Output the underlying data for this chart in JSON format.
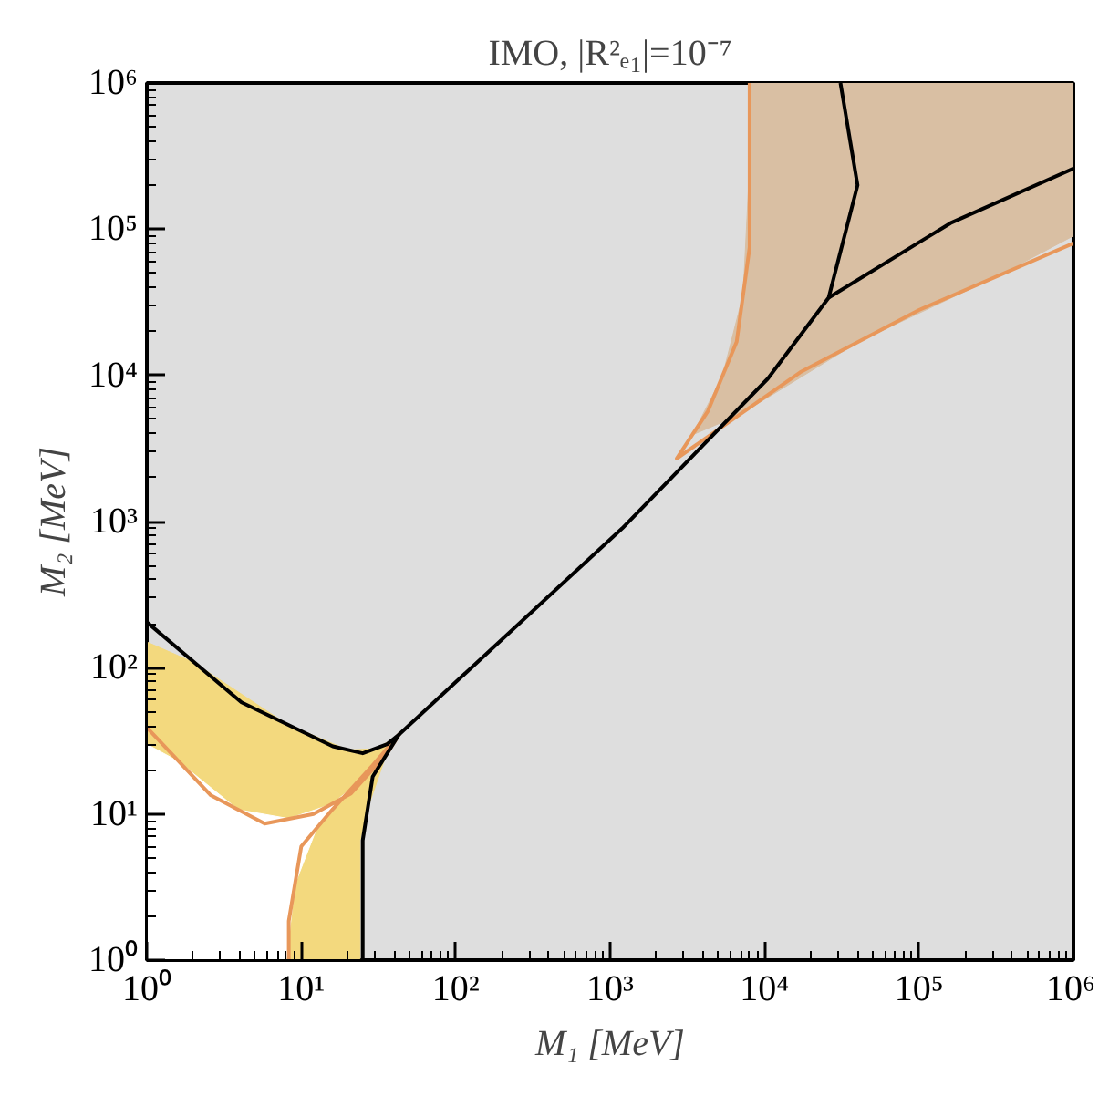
{
  "chart_data": {
    "type": "line",
    "title": "IMO, |R²ₑ₁|=10⁻⁷",
    "xlabel": "M₁ [MeV]",
    "ylabel": "M₂ [MeV]",
    "log": "xy",
    "line_style": "solid",
    "xlim": [
      1,
      1000000
    ],
    "ylim": [
      1,
      1000000
    ],
    "xticks": [
      {
        "value": 1,
        "label": "10⁰"
      },
      {
        "value": 10,
        "label": "10¹"
      },
      {
        "value": 100,
        "label": "10²"
      },
      {
        "value": 1000,
        "label": "10³"
      },
      {
        "value": 10000,
        "label": "10⁴"
      },
      {
        "value": 100000,
        "label": "10⁵"
      },
      {
        "value": 1000000,
        "label": "10⁶"
      }
    ],
    "yticks": [
      {
        "value": 1,
        "label": "10⁰"
      },
      {
        "value": 10,
        "label": "10¹"
      },
      {
        "value": 100,
        "label": "10²"
      },
      {
        "value": 1000,
        "label": "10³"
      },
      {
        "value": 10000,
        "label": "10⁴"
      },
      {
        "value": 100000,
        "label": "10⁵"
      },
      {
        "value": 1000000,
        "label": "10⁶"
      }
    ],
    "series": [
      {
        "type": "area",
        "color": "#f3d97e",
        "x": [
          1,
          1,
          2,
          8.1,
          20,
          30,
          39.3,
          35.3,
          26.9,
          24,
          24
        ],
        "values": [
          1,
          150,
          109,
          41,
          27.4,
          27.9,
          32.4,
          25,
          10.9,
          6.6,
          1
        ]
      },
      {
        "type": "area",
        "color": "#ffffff",
        "x": [
          1,
          1,
          1.6,
          3.9,
          8.3,
          15.9,
          27.5,
          39.3,
          35.3,
          21.5,
          12.6,
          9.1,
          8
        ],
        "values": [
          1,
          30,
          22.9,
          10.7,
          9.3,
          11.7,
          18.9,
          30.2,
          27.4,
          15.2,
          8,
          3.3,
          1
        ]
      },
      {
        "type": "area",
        "color": "#d9bfa3",
        "x": [
          8200,
          8000,
          7270,
          5330,
          3410,
          6770,
          41200,
          316000,
          1000000,
          1000000
        ],
        "values": [
          1000000,
          274000,
          35700,
          9840,
          3920,
          5320,
          17100,
          47300,
          90000,
          1000000
        ]
      },
      {
        "color": "#e8975a",
        "x": [
          1,
          2.6,
          5.8,
          12,
          21,
          36,
          43,
          29,
          16,
          10,
          8.3,
          8.3,
          null,
          8000,
          8000,
          6600,
          4300,
          2700,
          17000,
          100000,
          1000000
        ],
        "values": [
          39,
          13.4,
          8.6,
          10,
          13.8,
          26,
          35,
          21.5,
          10.8,
          6,
          1.85,
          1,
          null,
          1000000,
          75000,
          17000,
          5700,
          2700,
          10500,
          28000,
          80000
        ]
      },
      {
        "color": "#000000",
        "x": [
          1,
          4.1,
          16,
          25,
          36,
          43,
          29,
          25,
          25,
          null,
          43,
          1200,
          10500,
          26000,
          40000,
          31000,
          null,
          26000,
          160000,
          1000000
        ],
        "values": [
          205,
          58,
          29,
          26,
          30,
          35,
          18,
          6.6,
          1,
          null,
          35,
          900,
          9500,
          34000,
          200000,
          1000000,
          null,
          34000,
          110000,
          260000
        ]
      }
    ]
  }
}
